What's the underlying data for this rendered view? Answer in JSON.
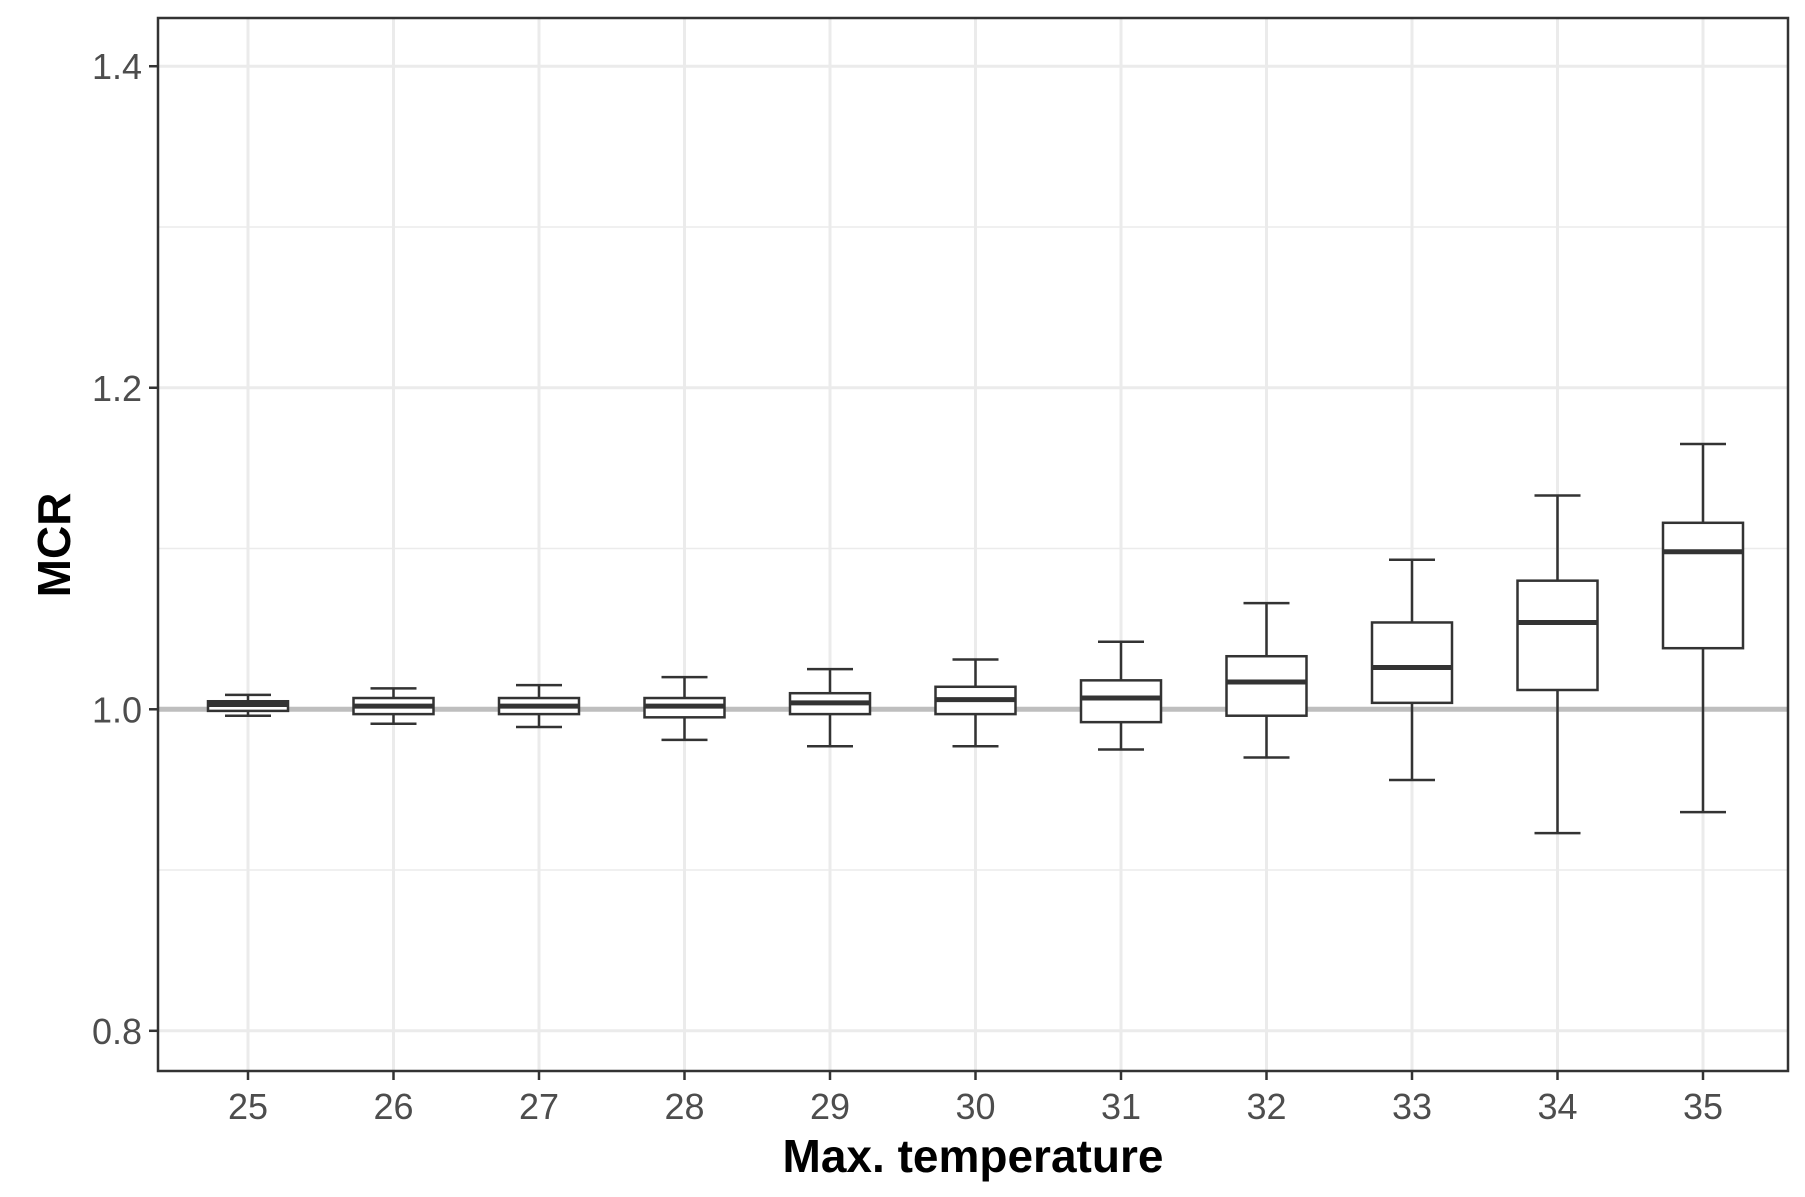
{
  "chart_data": {
    "type": "boxplot",
    "title": "",
    "xlabel": "Max. temperature",
    "ylabel": "MCR",
    "ylim": [
      0.775,
      1.43
    ],
    "yticks": [
      0.8,
      1.0,
      1.2,
      1.4
    ],
    "ytick_labels": [
      "0.8",
      "1.0",
      "1.2",
      "1.4"
    ],
    "reference_line": 1.0,
    "grid": true,
    "categories": [
      "25",
      "26",
      "27",
      "28",
      "29",
      "30",
      "31",
      "32",
      "33",
      "34",
      "35"
    ],
    "boxes": [
      {
        "x": "25",
        "whisker_low": 0.996,
        "q1": 0.999,
        "median": 1.003,
        "q3": 1.005,
        "whisker_high": 1.009
      },
      {
        "x": "26",
        "whisker_low": 0.991,
        "q1": 0.997,
        "median": 1.002,
        "q3": 1.007,
        "whisker_high": 1.013
      },
      {
        "x": "27",
        "whisker_low": 0.989,
        "q1": 0.997,
        "median": 1.002,
        "q3": 1.007,
        "whisker_high": 1.015
      },
      {
        "x": "28",
        "whisker_low": 0.981,
        "q1": 0.995,
        "median": 1.002,
        "q3": 1.007,
        "whisker_high": 1.02
      },
      {
        "x": "29",
        "whisker_low": 0.977,
        "q1": 0.997,
        "median": 1.004,
        "q3": 1.01,
        "whisker_high": 1.025
      },
      {
        "x": "30",
        "whisker_low": 0.977,
        "q1": 0.997,
        "median": 1.006,
        "q3": 1.014,
        "whisker_high": 1.031
      },
      {
        "x": "31",
        "whisker_low": 0.975,
        "q1": 0.992,
        "median": 1.007,
        "q3": 1.018,
        "whisker_high": 1.042
      },
      {
        "x": "32",
        "whisker_low": 0.97,
        "q1": 0.996,
        "median": 1.017,
        "q3": 1.033,
        "whisker_high": 1.066
      },
      {
        "x": "33",
        "whisker_low": 0.956,
        "q1": 1.004,
        "median": 1.026,
        "q3": 1.054,
        "whisker_high": 1.093
      },
      {
        "x": "34",
        "whisker_low": 0.923,
        "q1": 1.012,
        "median": 1.054,
        "q3": 1.08,
        "whisker_high": 1.133
      },
      {
        "x": "35",
        "whisker_low": 0.936,
        "q1": 1.038,
        "median": 1.098,
        "q3": 1.116,
        "whisker_high": 1.165
      }
    ],
    "colors": {
      "box_stroke": "#333333",
      "box_fill": "#ffffff",
      "grid": "#ebebeb",
      "reference_line": "#bebebe",
      "panel_border": "#333333",
      "tick_label": "#4d4d4d"
    }
  }
}
